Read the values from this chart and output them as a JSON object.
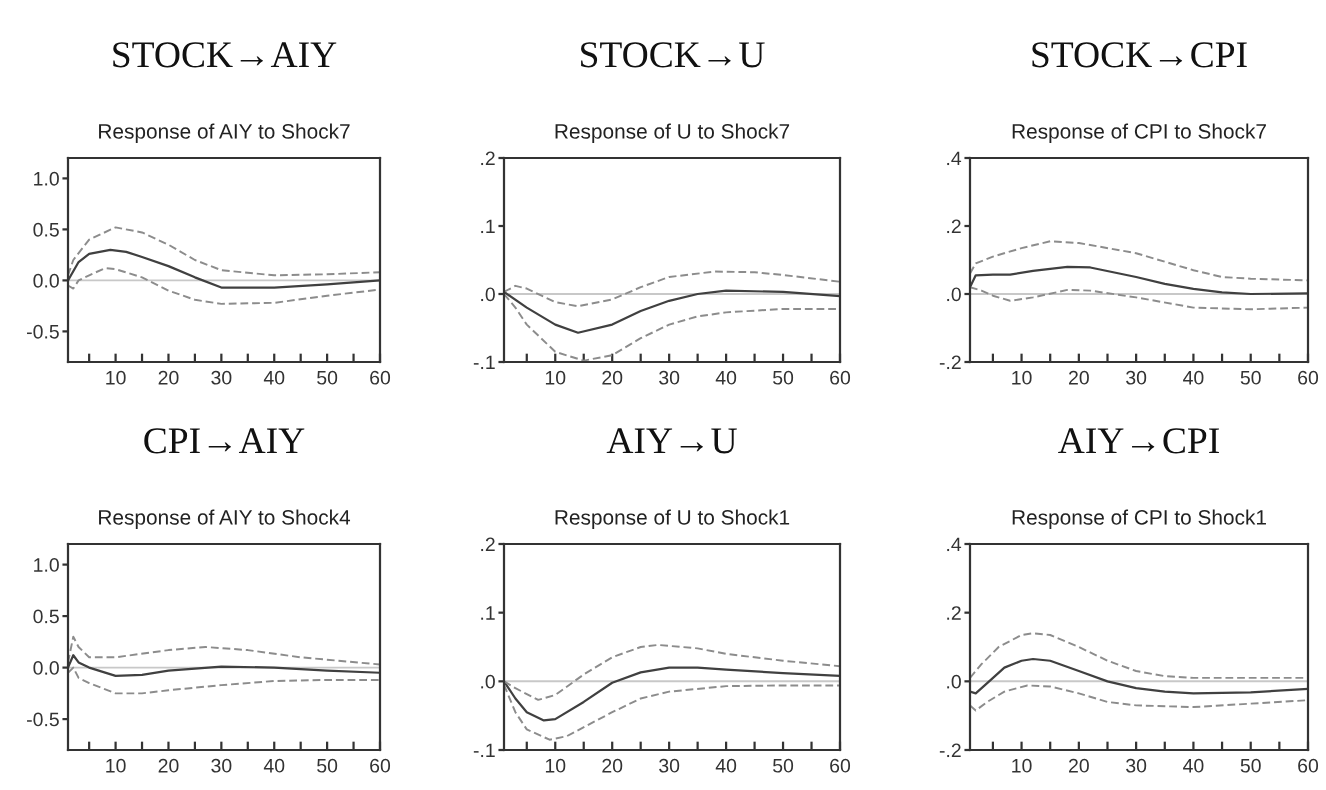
{
  "chart_data": [
    {
      "type": "line",
      "title": "STOCK→AIY",
      "subtitle": "Response of AIY to Shock7",
      "xlim": [
        1,
        60
      ],
      "ylim": [
        -0.8,
        1.2
      ],
      "xticks": [
        {
          "value": 5,
          "label": null
        },
        10,
        {
          "value": 15,
          "label": null
        },
        20,
        {
          "value": 25,
          "label": null
        },
        30,
        {
          "value": 35,
          "label": null
        },
        40,
        {
          "value": 45,
          "label": null
        },
        50,
        {
          "value": 55,
          "label": null
        },
        60
      ],
      "yticks": [
        {
          "value": -0.5,
          "label": "-0.5"
        },
        {
          "value": 0,
          "label": "0.0"
        },
        {
          "value": 0.5,
          "label": "0.5"
        },
        {
          "value": 1.0,
          "label": "1.0"
        }
      ],
      "ref_lines": [
        {
          "axis": "y",
          "value": 0,
          "color": "#c8c8c8"
        }
      ],
      "series": [
        {
          "color": "#404040",
          "line_style": "solid",
          "x": [
            1,
            3,
            5,
            9,
            12,
            15,
            20,
            25,
            30,
            40,
            50,
            60
          ],
          "values": [
            0.0,
            0.18,
            0.26,
            0.3,
            0.28,
            0.23,
            0.14,
            0.03,
            -0.07,
            -0.07,
            -0.04,
            0.0
          ]
        },
        {
          "color": "#8c8c8c",
          "line_style": "dashed",
          "x": [
            1,
            2,
            5,
            10,
            15,
            20,
            25,
            30,
            40,
            50,
            60
          ],
          "values": [
            0.05,
            0.2,
            0.4,
            0.52,
            0.47,
            0.35,
            0.2,
            0.1,
            0.05,
            0.06,
            0.08
          ]
        },
        {
          "color": "#8c8c8c",
          "line_style": "dashed",
          "x": [
            1,
            2,
            3,
            5,
            8,
            10,
            15,
            20,
            25,
            30,
            40,
            50,
            60
          ],
          "values": [
            -0.05,
            -0.08,
            0.0,
            0.05,
            0.12,
            0.11,
            0.03,
            -0.1,
            -0.19,
            -0.23,
            -0.22,
            -0.15,
            -0.09
          ]
        }
      ]
    },
    {
      "type": "line",
      "title": "STOCK→U",
      "subtitle": "Response of U to Shock7",
      "xlim": [
        1,
        60
      ],
      "ylim": [
        -0.1,
        0.2
      ],
      "xticks": [
        {
          "value": 5,
          "label": null
        },
        10,
        {
          "value": 15,
          "label": null
        },
        20,
        {
          "value": 25,
          "label": null
        },
        30,
        {
          "value": 35,
          "label": null
        },
        40,
        {
          "value": 45,
          "label": null
        },
        50,
        {
          "value": 55,
          "label": null
        },
        60
      ],
      "yticks": [
        {
          "value": -0.1,
          "label": "-.1"
        },
        {
          "value": 0,
          "label": ".0"
        },
        {
          "value": 0.1,
          "label": ".1"
        },
        {
          "value": 0.2,
          "label": ".2"
        }
      ],
      "ref_lines": [
        {
          "axis": "y",
          "value": 0,
          "color": "#c8c8c8"
        }
      ],
      "series": [
        {
          "color": "#404040",
          "line_style": "solid",
          "x": [
            1,
            5,
            10,
            14,
            20,
            25,
            30,
            35,
            40,
            50,
            60
          ],
          "values": [
            0.003,
            -0.02,
            -0.045,
            -0.057,
            -0.045,
            -0.025,
            -0.01,
            0.0,
            0.005,
            0.003,
            -0.003
          ]
        },
        {
          "color": "#8c8c8c",
          "line_style": "dashed",
          "x": [
            1,
            3,
            5,
            10,
            14,
            20,
            25,
            30,
            38,
            45,
            50,
            60
          ],
          "values": [
            0.003,
            0.012,
            0.008,
            -0.012,
            -0.018,
            -0.008,
            0.01,
            0.025,
            0.033,
            0.032,
            0.028,
            0.018
          ]
        },
        {
          "color": "#8c8c8c",
          "line_style": "dashed",
          "x": [
            1,
            3,
            5,
            10,
            15,
            20,
            25,
            30,
            35,
            40,
            50,
            60
          ],
          "values": [
            0.0,
            -0.02,
            -0.045,
            -0.085,
            -0.098,
            -0.09,
            -0.065,
            -0.045,
            -0.033,
            -0.027,
            -0.022,
            -0.022
          ]
        }
      ]
    },
    {
      "type": "line",
      "title": "STOCK→CPI",
      "subtitle": "Response of CPI to Shock7",
      "xlim": [
        1,
        60
      ],
      "ylim": [
        -0.2,
        0.4
      ],
      "xticks": [
        {
          "value": 5,
          "label": null
        },
        10,
        {
          "value": 15,
          "label": null
        },
        20,
        {
          "value": 25,
          "label": null
        },
        30,
        {
          "value": 35,
          "label": null
        },
        40,
        {
          "value": 45,
          "label": null
        },
        50,
        {
          "value": 55,
          "label": null
        },
        60
      ],
      "yticks": [
        {
          "value": -0.2,
          "label": "-.2"
        },
        {
          "value": 0,
          "label": ".0"
        },
        {
          "value": 0.2,
          "label": ".2"
        },
        {
          "value": 0.4,
          "label": ".4"
        }
      ],
      "ref_lines": [
        {
          "axis": "y",
          "value": 0,
          "color": "#c8c8c8"
        }
      ],
      "series": [
        {
          "color": "#404040",
          "line_style": "solid",
          "x": [
            1,
            2,
            5,
            8,
            12,
            18,
            22,
            30,
            35,
            40,
            45,
            50,
            60
          ],
          "values": [
            0.02,
            0.055,
            0.057,
            0.057,
            0.068,
            0.08,
            0.078,
            0.05,
            0.03,
            0.015,
            0.005,
            0.0,
            0.002
          ]
        },
        {
          "color": "#8c8c8c",
          "line_style": "dashed",
          "x": [
            1,
            2,
            5,
            10,
            15,
            20,
            30,
            40,
            45,
            50,
            60
          ],
          "values": [
            0.06,
            0.09,
            0.11,
            0.135,
            0.155,
            0.15,
            0.12,
            0.07,
            0.05,
            0.045,
            0.04
          ]
        },
        {
          "color": "#8c8c8c",
          "line_style": "dashed",
          "x": [
            1,
            3,
            5,
            8,
            12,
            18,
            22,
            30,
            40,
            50,
            60
          ],
          "values": [
            0.02,
            0.01,
            -0.005,
            -0.02,
            -0.01,
            0.012,
            0.01,
            -0.01,
            -0.04,
            -0.045,
            -0.04
          ]
        }
      ]
    },
    {
      "type": "line",
      "title": "CPI→AIY",
      "subtitle": "Response of AIY to Shock4",
      "xlim": [
        1,
        60
      ],
      "ylim": [
        -0.8,
        1.2
      ],
      "xticks": [
        {
          "value": 5,
          "label": null
        },
        10,
        {
          "value": 15,
          "label": null
        },
        20,
        {
          "value": 25,
          "label": null
        },
        30,
        {
          "value": 35,
          "label": null
        },
        40,
        {
          "value": 45,
          "label": null
        },
        50,
        {
          "value": 55,
          "label": null
        },
        60
      ],
      "yticks": [
        {
          "value": -0.5,
          "label": "-0.5"
        },
        {
          "value": 0,
          "label": "0.0"
        },
        {
          "value": 0.5,
          "label": "0.5"
        },
        {
          "value": 1.0,
          "label": "1.0"
        }
      ],
      "ref_lines": [
        {
          "axis": "y",
          "value": 0,
          "color": "#c8c8c8"
        }
      ],
      "series": [
        {
          "color": "#404040",
          "line_style": "solid",
          "x": [
            1,
            2,
            3,
            5,
            10,
            15,
            20,
            30,
            40,
            50,
            60
          ],
          "values": [
            0.0,
            0.12,
            0.05,
            0.0,
            -0.08,
            -0.07,
            -0.03,
            0.01,
            0.0,
            -0.03,
            -0.05
          ]
        },
        {
          "color": "#8c8c8c",
          "line_style": "dashed",
          "x": [
            1,
            2,
            3,
            5,
            10,
            20,
            27,
            35,
            45,
            60
          ],
          "values": [
            0.05,
            0.3,
            0.2,
            0.1,
            0.1,
            0.17,
            0.2,
            0.17,
            0.1,
            0.03
          ]
        },
        {
          "color": "#8c8c8c",
          "line_style": "dashed",
          "x": [
            1,
            2,
            3,
            5,
            10,
            15,
            20,
            30,
            40,
            50,
            60
          ],
          "values": [
            -0.05,
            0.0,
            -0.1,
            -0.15,
            -0.25,
            -0.25,
            -0.22,
            -0.17,
            -0.13,
            -0.12,
            -0.12
          ]
        }
      ]
    },
    {
      "type": "line",
      "title": "AIY→U",
      "subtitle": "Response of U to Shock1",
      "xlim": [
        1,
        60
      ],
      "ylim": [
        -0.1,
        0.2
      ],
      "xticks": [
        {
          "value": 5,
          "label": null
        },
        10,
        {
          "value": 15,
          "label": null
        },
        20,
        {
          "value": 25,
          "label": null
        },
        30,
        {
          "value": 35,
          "label": null
        },
        40,
        {
          "value": 45,
          "label": null
        },
        50,
        {
          "value": 55,
          "label": null
        },
        60
      ],
      "yticks": [
        {
          "value": -0.1,
          "label": "-.1"
        },
        {
          "value": 0,
          "label": ".0"
        },
        {
          "value": 0.1,
          "label": ".1"
        },
        {
          "value": 0.2,
          "label": ".2"
        }
      ],
      "ref_lines": [
        {
          "axis": "y",
          "value": 0,
          "color": "#c8c8c8"
        }
      ],
      "series": [
        {
          "color": "#404040",
          "line_style": "solid",
          "x": [
            1,
            3,
            5,
            8,
            10,
            15,
            20,
            25,
            30,
            35,
            40,
            50,
            60
          ],
          "values": [
            0.0,
            -0.025,
            -0.045,
            -0.057,
            -0.055,
            -0.03,
            -0.002,
            0.013,
            0.02,
            0.02,
            0.017,
            0.012,
            0.008
          ]
        },
        {
          "color": "#8c8c8c",
          "line_style": "dashed",
          "x": [
            1,
            3,
            7,
            10,
            15,
            20,
            25,
            28,
            35,
            40,
            50,
            60
          ],
          "values": [
            0.0,
            -0.01,
            -0.027,
            -0.02,
            0.01,
            0.035,
            0.05,
            0.053,
            0.048,
            0.04,
            0.03,
            0.022
          ]
        },
        {
          "color": "#8c8c8c",
          "line_style": "dashed",
          "x": [
            1,
            3,
            5,
            9,
            12,
            20,
            25,
            30,
            40,
            50,
            60
          ],
          "values": [
            -0.005,
            -0.045,
            -0.07,
            -0.085,
            -0.08,
            -0.045,
            -0.025,
            -0.015,
            -0.007,
            -0.006,
            -0.006
          ]
        }
      ]
    },
    {
      "type": "line",
      "title": "AIY→CPI",
      "subtitle": "Response of CPI to Shock1",
      "xlim": [
        1,
        60
      ],
      "ylim": [
        -0.2,
        0.4
      ],
      "xticks": [
        {
          "value": 5,
          "label": null
        },
        10,
        {
          "value": 15,
          "label": null
        },
        20,
        {
          "value": 25,
          "label": null
        },
        30,
        {
          "value": 35,
          "label": null
        },
        40,
        {
          "value": 45,
          "label": null
        },
        50,
        {
          "value": 55,
          "label": null
        },
        60
      ],
      "yticks": [
        {
          "value": -0.2,
          "label": "-.2"
        },
        {
          "value": 0,
          "label": ".0"
        },
        {
          "value": 0.2,
          "label": ".2"
        },
        {
          "value": 0.4,
          "label": ".4"
        }
      ],
      "ref_lines": [
        {
          "axis": "y",
          "value": 0,
          "color": "#c8c8c8"
        }
      ],
      "series": [
        {
          "color": "#404040",
          "line_style": "solid",
          "x": [
            1,
            2,
            4,
            7,
            10,
            12,
            15,
            20,
            25,
            30,
            35,
            40,
            50,
            60
          ],
          "values": [
            -0.03,
            -0.035,
            -0.005,
            0.04,
            0.06,
            0.065,
            0.06,
            0.03,
            0.0,
            -0.02,
            -0.03,
            -0.035,
            -0.032,
            -0.022
          ]
        },
        {
          "color": "#8c8c8c",
          "line_style": "dashed",
          "x": [
            1,
            3,
            6,
            10,
            12,
            15,
            20,
            25,
            30,
            35,
            40,
            50,
            60
          ],
          "values": [
            0.01,
            0.05,
            0.1,
            0.135,
            0.14,
            0.135,
            0.1,
            0.06,
            0.03,
            0.015,
            0.01,
            0.01,
            0.01
          ]
        },
        {
          "color": "#8c8c8c",
          "line_style": "dashed",
          "x": [
            1,
            2,
            4,
            7,
            11,
            15,
            20,
            25,
            30,
            40,
            50,
            60
          ],
          "values": [
            -0.07,
            -0.085,
            -0.06,
            -0.03,
            -0.012,
            -0.015,
            -0.035,
            -0.06,
            -0.07,
            -0.075,
            -0.065,
            -0.055
          ]
        }
      ]
    }
  ]
}
